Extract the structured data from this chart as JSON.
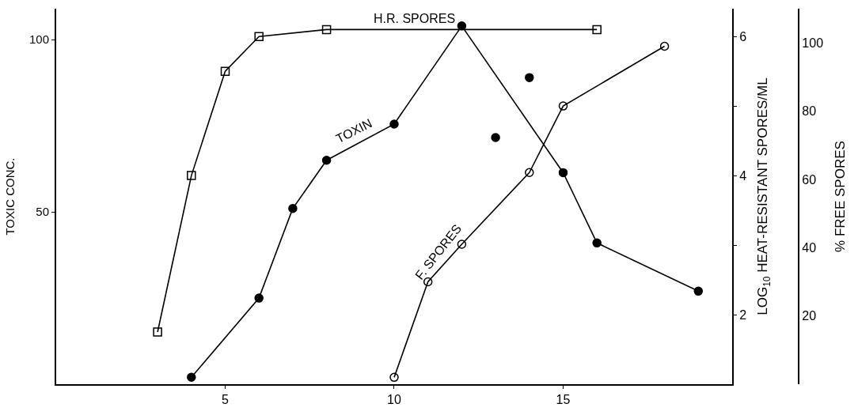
{
  "chart_data": {
    "type": "line",
    "ylabel": "TOXIC CONC.",
    "y2label": "LOG$_{10}$ HEAT-RESISTANT SPORES/ML",
    "y3label": "% FREE SPORES",
    "xlim": [
      0,
      20
    ],
    "xticks": [
      5,
      10,
      15
    ],
    "ylim": [
      0,
      109
    ],
    "yticks": [
      50,
      100
    ],
    "y2lim": [
      1,
      6.4
    ],
    "y2ticks": [
      2,
      {
        "value": 3,
        "label": null
      },
      4,
      {
        "value": 5,
        "label": null
      },
      6
    ],
    "y3lim": [
      0,
      110
    ],
    "y3ticks": [
      20,
      40,
      60,
      80,
      100
    ],
    "legend": false,
    "series": [
      {
        "name": "H.R. SPORES",
        "color": "#000000",
        "axis": "y2",
        "marker": "square-open",
        "x": [
          3,
          4,
          5,
          6,
          8,
          16
        ],
        "values": [
          1.75,
          4.0,
          5.5,
          6.0,
          6.1,
          6.1
        ]
      },
      {
        "name": "TOXIN",
        "color": "#000000",
        "axis": "y",
        "marker": "circle",
        "x": [
          4,
          6,
          7,
          8,
          10,
          12,
          15,
          16,
          19
        ],
        "values": [
          2,
          25,
          51,
          65,
          75.5,
          104,
          61.4,
          41,
          27
        ]
      },
      {
        "type": "scatter",
        "color": "#000000",
        "axis": "y",
        "marker": "circle",
        "x": [
          13,
          14
        ],
        "values": [
          71.6,
          89
        ]
      },
      {
        "name": "F. SPORES",
        "color": "#000000",
        "axis": "y3",
        "marker": "circle-open",
        "x": [
          10,
          11,
          12,
          14,
          15,
          18
        ],
        "values": [
          2,
          30,
          41,
          62,
          81.5,
          99
        ]
      }
    ]
  }
}
